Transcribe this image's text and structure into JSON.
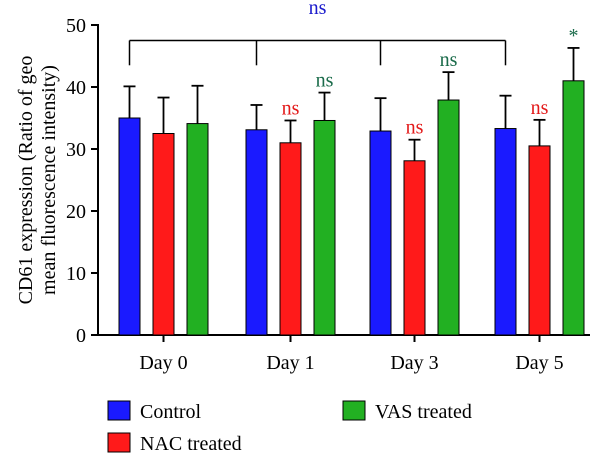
{
  "chart_data": {
    "type": "bar",
    "ylabel_lines": [
      "CD61 expression (Ratio of geo",
      "mean fluorescence intensity)"
    ],
    "xlabel": "",
    "ylim": [
      0,
      50
    ],
    "yticks": [
      0,
      10,
      20,
      30,
      40,
      50
    ],
    "categories": [
      "Day 0",
      "Day 1",
      "Day 3",
      "Day 5"
    ],
    "series": [
      {
        "name": "Control",
        "color": "#1a1aff",
        "values": [
          35.0,
          33.1,
          32.9,
          33.3
        ],
        "errors": [
          5.1,
          4.0,
          5.3,
          5.3
        ]
      },
      {
        "name": "NAC treated",
        "color": "#ff1a1a",
        "values": [
          32.5,
          31.0,
          28.1,
          30.5
        ],
        "errors": [
          5.8,
          3.6,
          3.4,
          4.2
        ]
      },
      {
        "name": "VAS treated",
        "color": "#22b022",
        "values": [
          34.1,
          34.6,
          37.9,
          41.0
        ],
        "errors": [
          6.1,
          4.5,
          4.5,
          5.3
        ]
      }
    ],
    "annotations": [
      {
        "text": "ns",
        "category": 1,
        "series": 1,
        "color": "#e31a1a"
      },
      {
        "text": "ns",
        "category": 1,
        "series": 2,
        "color": "#1a6b4a"
      },
      {
        "text": "ns",
        "category": 2,
        "series": 1,
        "color": "#e31a1a"
      },
      {
        "text": "ns",
        "category": 2,
        "series": 2,
        "color": "#1a6b4a"
      },
      {
        "text": "ns",
        "category": 3,
        "series": 1,
        "color": "#e31a1a"
      },
      {
        "text": "*",
        "category": 3,
        "series": 2,
        "color": "#1a6b4a"
      }
    ],
    "bracket": {
      "text": "ns",
      "color": "#1a1acc",
      "value": 47.5,
      "drop_to": 43.5,
      "categories": [
        0,
        1,
        2,
        3
      ]
    },
    "legend": {
      "placement": "bottom",
      "entries": [
        "Control",
        "NAC treated",
        "VAS treated"
      ]
    },
    "grid": false
  }
}
